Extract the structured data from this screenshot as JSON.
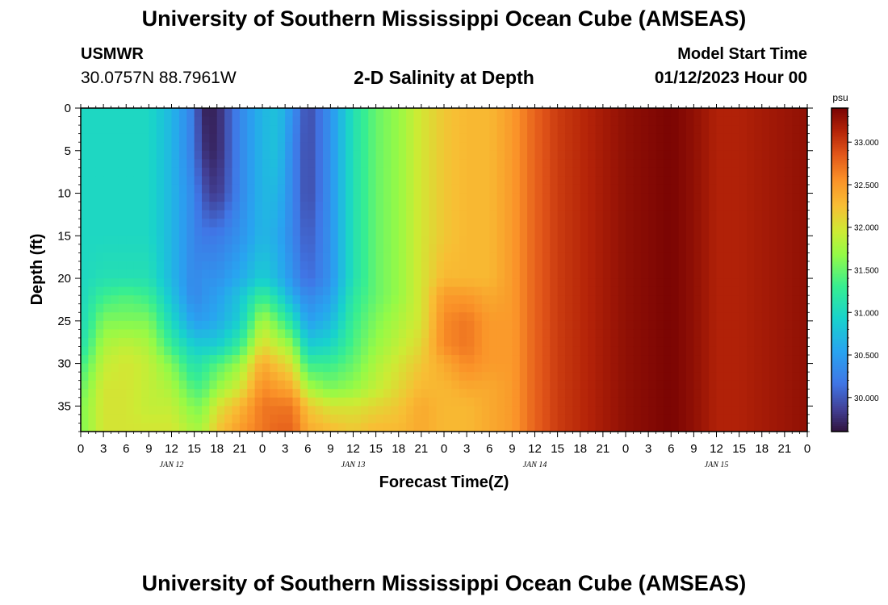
{
  "page": {
    "title": "University of Southern Mississippi Ocean Cube (AMSEAS)",
    "footer_title": "University of Southern Mississippi Ocean Cube (AMSEAS)",
    "station": {
      "name": "USMWR",
      "coords": "30.0757N  88.7961W"
    },
    "chart_title": "2-D Salinity at Depth",
    "model_start": {
      "label": "Model Start Time",
      "value": "01/12/2023 Hour 00"
    }
  },
  "chart_data": {
    "type": "heatmap",
    "title": "2-D Salinity at Depth",
    "xlabel": "Forecast Time(Z)",
    "ylabel": "Depth (ft)",
    "x_unit": "hours since model start",
    "xlim": [
      0,
      96
    ],
    "ylim": [
      0,
      38
    ],
    "x_tick_values": [
      0,
      3,
      6,
      9,
      12,
      15,
      18,
      21,
      24,
      27,
      30,
      33,
      36,
      39,
      42,
      45,
      48,
      51,
      54,
      57,
      60,
      63,
      66,
      69,
      72,
      75,
      78,
      81,
      84,
      87,
      90,
      93,
      96
    ],
    "x_tick_labels": [
      "0",
      "3",
      "6",
      "9",
      "12",
      "15",
      "18",
      "21",
      "0",
      "3",
      "6",
      "9",
      "12",
      "15",
      "18",
      "21",
      "0",
      "3",
      "6",
      "9",
      "12",
      "15",
      "18",
      "21",
      "0",
      "3",
      "6",
      "9",
      "12",
      "15",
      "18",
      "21",
      "0"
    ],
    "day_labels": [
      {
        "x": 12,
        "text": "JAN 12"
      },
      {
        "x": 36,
        "text": "JAN 13"
      },
      {
        "x": 60,
        "text": "JAN 14"
      },
      {
        "x": 84,
        "text": "JAN 15"
      }
    ],
    "y_ticks": [
      0,
      5,
      10,
      15,
      20,
      25,
      30,
      35
    ],
    "colorbar": {
      "unit": "psu",
      "min": 29.6,
      "max": 33.4,
      "tick_values": [
        30.0,
        30.5,
        31.0,
        31.5,
        32.0,
        32.5,
        33.0
      ],
      "tick_labels": [
        "30.000",
        "30.500",
        "31.000",
        "31.500",
        "32.000",
        "32.500",
        "33.000"
      ]
    },
    "depths": [
      0,
      5,
      10,
      15,
      20,
      22,
      25,
      28,
      30,
      33,
      35,
      38
    ],
    "times": [
      0,
      3,
      6,
      9,
      12,
      15,
      16,
      18,
      21,
      24,
      26,
      28,
      30,
      33,
      36,
      39,
      42,
      45,
      48,
      51,
      54,
      57,
      60,
      63,
      66,
      69,
      72,
      75,
      78,
      81,
      84,
      87,
      90,
      93,
      96
    ],
    "salinity": [
      [
        31.0,
        31.0,
        31.0,
        31.0,
        31.0,
        31.0,
        31.0,
        31.1,
        31.3,
        31.5,
        31.6,
        31.6
      ],
      [
        31.0,
        31.0,
        31.0,
        31.0,
        31.1,
        31.3,
        31.6,
        31.8,
        31.9,
        32.0,
        32.0,
        32.0
      ],
      [
        31.0,
        31.0,
        31.0,
        31.0,
        31.1,
        31.4,
        31.6,
        31.9,
        32.0,
        32.0,
        32.0,
        32.0
      ],
      [
        31.0,
        31.0,
        31.0,
        31.0,
        31.1,
        31.3,
        31.6,
        31.8,
        31.9,
        31.9,
        31.9,
        32.0
      ],
      [
        30.7,
        30.7,
        30.7,
        30.7,
        30.7,
        30.8,
        31.0,
        31.3,
        31.6,
        31.8,
        31.9,
        32.0
      ],
      [
        30.2,
        30.2,
        30.3,
        30.3,
        30.3,
        30.3,
        30.5,
        30.9,
        31.1,
        31.4,
        31.6,
        31.8
      ],
      [
        29.7,
        29.8,
        30.0,
        30.2,
        30.4,
        30.4,
        30.5,
        30.9,
        31.2,
        31.4,
        31.6,
        31.8
      ],
      [
        29.7,
        29.7,
        29.8,
        30.2,
        30.4,
        30.5,
        30.6,
        30.9,
        31.4,
        31.7,
        32.0,
        32.2
      ],
      [
        30.3,
        30.3,
        30.3,
        30.4,
        30.6,
        30.8,
        30.9,
        31.3,
        31.7,
        32.0,
        32.3,
        32.5
      ],
      [
        30.7,
        30.7,
        30.7,
        30.7,
        30.9,
        31.3,
        31.8,
        32.1,
        32.4,
        32.6,
        32.7,
        32.7
      ],
      [
        30.8,
        30.8,
        30.7,
        30.6,
        30.7,
        31.0,
        31.5,
        31.9,
        32.2,
        32.5,
        32.7,
        32.8
      ],
      [
        30.4,
        30.3,
        30.3,
        30.3,
        30.4,
        30.6,
        31.1,
        31.7,
        32.0,
        32.4,
        32.7,
        32.8
      ],
      [
        29.9,
        29.9,
        29.9,
        30.0,
        30.1,
        30.3,
        30.5,
        30.9,
        31.3,
        31.8,
        32.2,
        32.4
      ],
      [
        30.4,
        30.4,
        30.4,
        30.4,
        30.4,
        30.5,
        30.7,
        31.0,
        31.3,
        31.6,
        32.0,
        32.3
      ],
      [
        31.1,
        31.1,
        31.1,
        31.1,
        31.1,
        31.2,
        31.3,
        31.4,
        31.5,
        31.7,
        32.0,
        32.2
      ],
      [
        31.5,
        31.5,
        31.5,
        31.5,
        31.5,
        31.5,
        31.6,
        31.7,
        31.8,
        31.9,
        32.1,
        32.3
      ],
      [
        31.7,
        31.7,
        31.7,
        31.7,
        31.7,
        31.7,
        31.8,
        31.9,
        32.0,
        32.1,
        32.2,
        32.3
      ],
      [
        32.0,
        32.0,
        32.0,
        32.0,
        32.0,
        32.0,
        32.0,
        32.1,
        32.2,
        32.3,
        32.4,
        32.4
      ],
      [
        32.2,
        32.2,
        32.2,
        32.2,
        32.3,
        32.5,
        32.6,
        32.6,
        32.4,
        32.3,
        32.3,
        32.3
      ],
      [
        32.3,
        32.3,
        32.3,
        32.3,
        32.3,
        32.5,
        32.7,
        32.7,
        32.6,
        32.4,
        32.3,
        32.3
      ],
      [
        32.3,
        32.3,
        32.3,
        32.3,
        32.3,
        32.4,
        32.5,
        32.5,
        32.5,
        32.4,
        32.4,
        32.4
      ],
      [
        32.5,
        32.5,
        32.5,
        32.5,
        32.5,
        32.5,
        32.5,
        32.5,
        32.5,
        32.5,
        32.5,
        32.5
      ],
      [
        32.8,
        32.8,
        32.8,
        32.8,
        32.8,
        32.8,
        32.8,
        32.8,
        32.8,
        32.8,
        32.8,
        32.8
      ],
      [
        33.0,
        33.0,
        33.0,
        33.0,
        33.0,
        33.0,
        33.0,
        33.0,
        33.0,
        33.0,
        33.0,
        33.0
      ],
      [
        33.1,
        33.1,
        33.1,
        33.1,
        33.1,
        33.1,
        33.1,
        33.1,
        33.1,
        33.1,
        33.1,
        33.1
      ],
      [
        33.2,
        33.2,
        33.2,
        33.2,
        33.2,
        33.2,
        33.2,
        33.2,
        33.2,
        33.2,
        33.2,
        33.2
      ],
      [
        33.3,
        33.3,
        33.3,
        33.3,
        33.3,
        33.3,
        33.3,
        33.3,
        33.3,
        33.3,
        33.3,
        33.3
      ],
      [
        33.35,
        33.35,
        33.35,
        33.35,
        33.35,
        33.35,
        33.35,
        33.35,
        33.35,
        33.35,
        33.35,
        33.35
      ],
      [
        33.4,
        33.4,
        33.4,
        33.4,
        33.4,
        33.4,
        33.4,
        33.4,
        33.4,
        33.4,
        33.4,
        33.4
      ],
      [
        33.3,
        33.3,
        33.3,
        33.3,
        33.3,
        33.3,
        33.3,
        33.3,
        33.3,
        33.3,
        33.3,
        33.3
      ],
      [
        33.15,
        33.15,
        33.15,
        33.15,
        33.15,
        33.15,
        33.15,
        33.15,
        33.15,
        33.15,
        33.15,
        33.15
      ],
      [
        33.15,
        33.15,
        33.15,
        33.15,
        33.15,
        33.15,
        33.15,
        33.15,
        33.15,
        33.15,
        33.15,
        33.15
      ],
      [
        33.2,
        33.2,
        33.2,
        33.2,
        33.2,
        33.2,
        33.2,
        33.2,
        33.2,
        33.2,
        33.2,
        33.2
      ],
      [
        33.25,
        33.25,
        33.25,
        33.25,
        33.25,
        33.25,
        33.25,
        33.25,
        33.25,
        33.25,
        33.25,
        33.25
      ],
      [
        33.3,
        33.3,
        33.3,
        33.3,
        33.3,
        33.3,
        33.3,
        33.3,
        33.3,
        33.3,
        33.3,
        33.3
      ]
    ]
  }
}
